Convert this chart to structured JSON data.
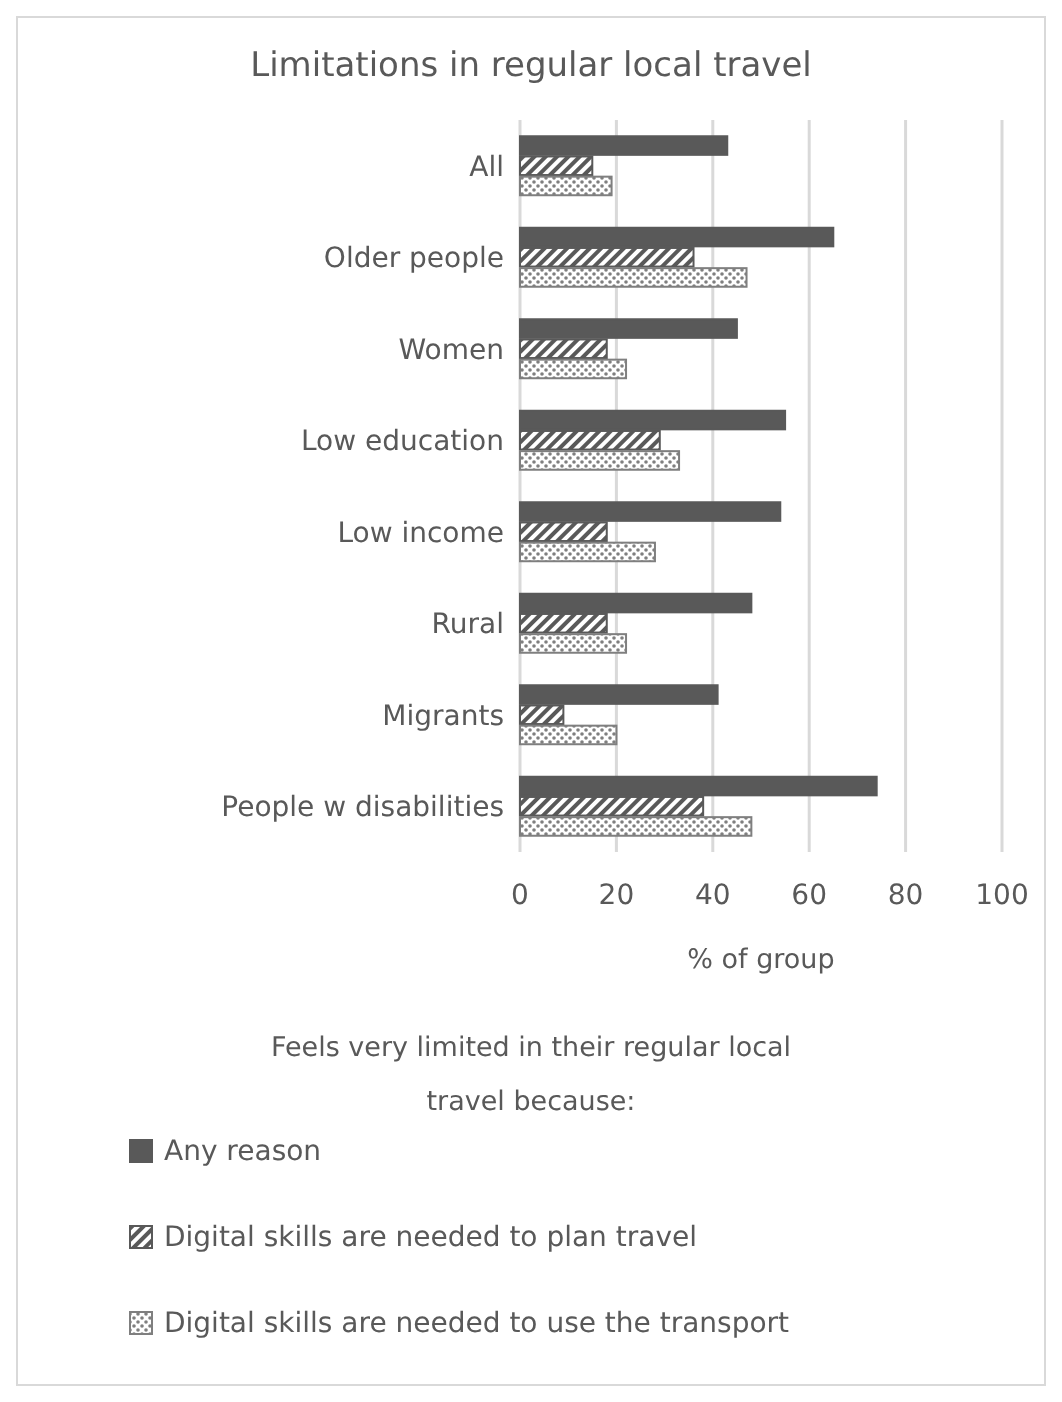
{
  "chart_data": {
    "type": "bar",
    "orientation": "horizontal",
    "title": "Limitations in regular local travel",
    "xlabel": "% of group",
    "legend_title": "Feels very limited in their regular local travel because:",
    "categories": [
      "All",
      "Older people",
      "Women",
      "Low education",
      "Low income",
      "Rural",
      "Migrants",
      "People w disabilities"
    ],
    "series": [
      {
        "name": "Any reason",
        "color": "#595959",
        "values": [
          43,
          65,
          45,
          55,
          54,
          48,
          41,
          74
        ]
      },
      {
        "name": "Digital skills are needed to plan travel",
        "color": "#595959",
        "values": [
          15,
          36,
          18,
          29,
          18,
          18,
          9,
          38
        ]
      },
      {
        "name": "Digital skills are needed to use the transport",
        "color": "#7f7f7f",
        "values": [
          19,
          47,
          22,
          33,
          28,
          22,
          20,
          48
        ]
      }
    ],
    "xlim": [
      0,
      100
    ],
    "xticks": [
      0,
      20,
      40,
      60,
      80,
      100
    ],
    "grid": "x",
    "legend": "bottom"
  }
}
